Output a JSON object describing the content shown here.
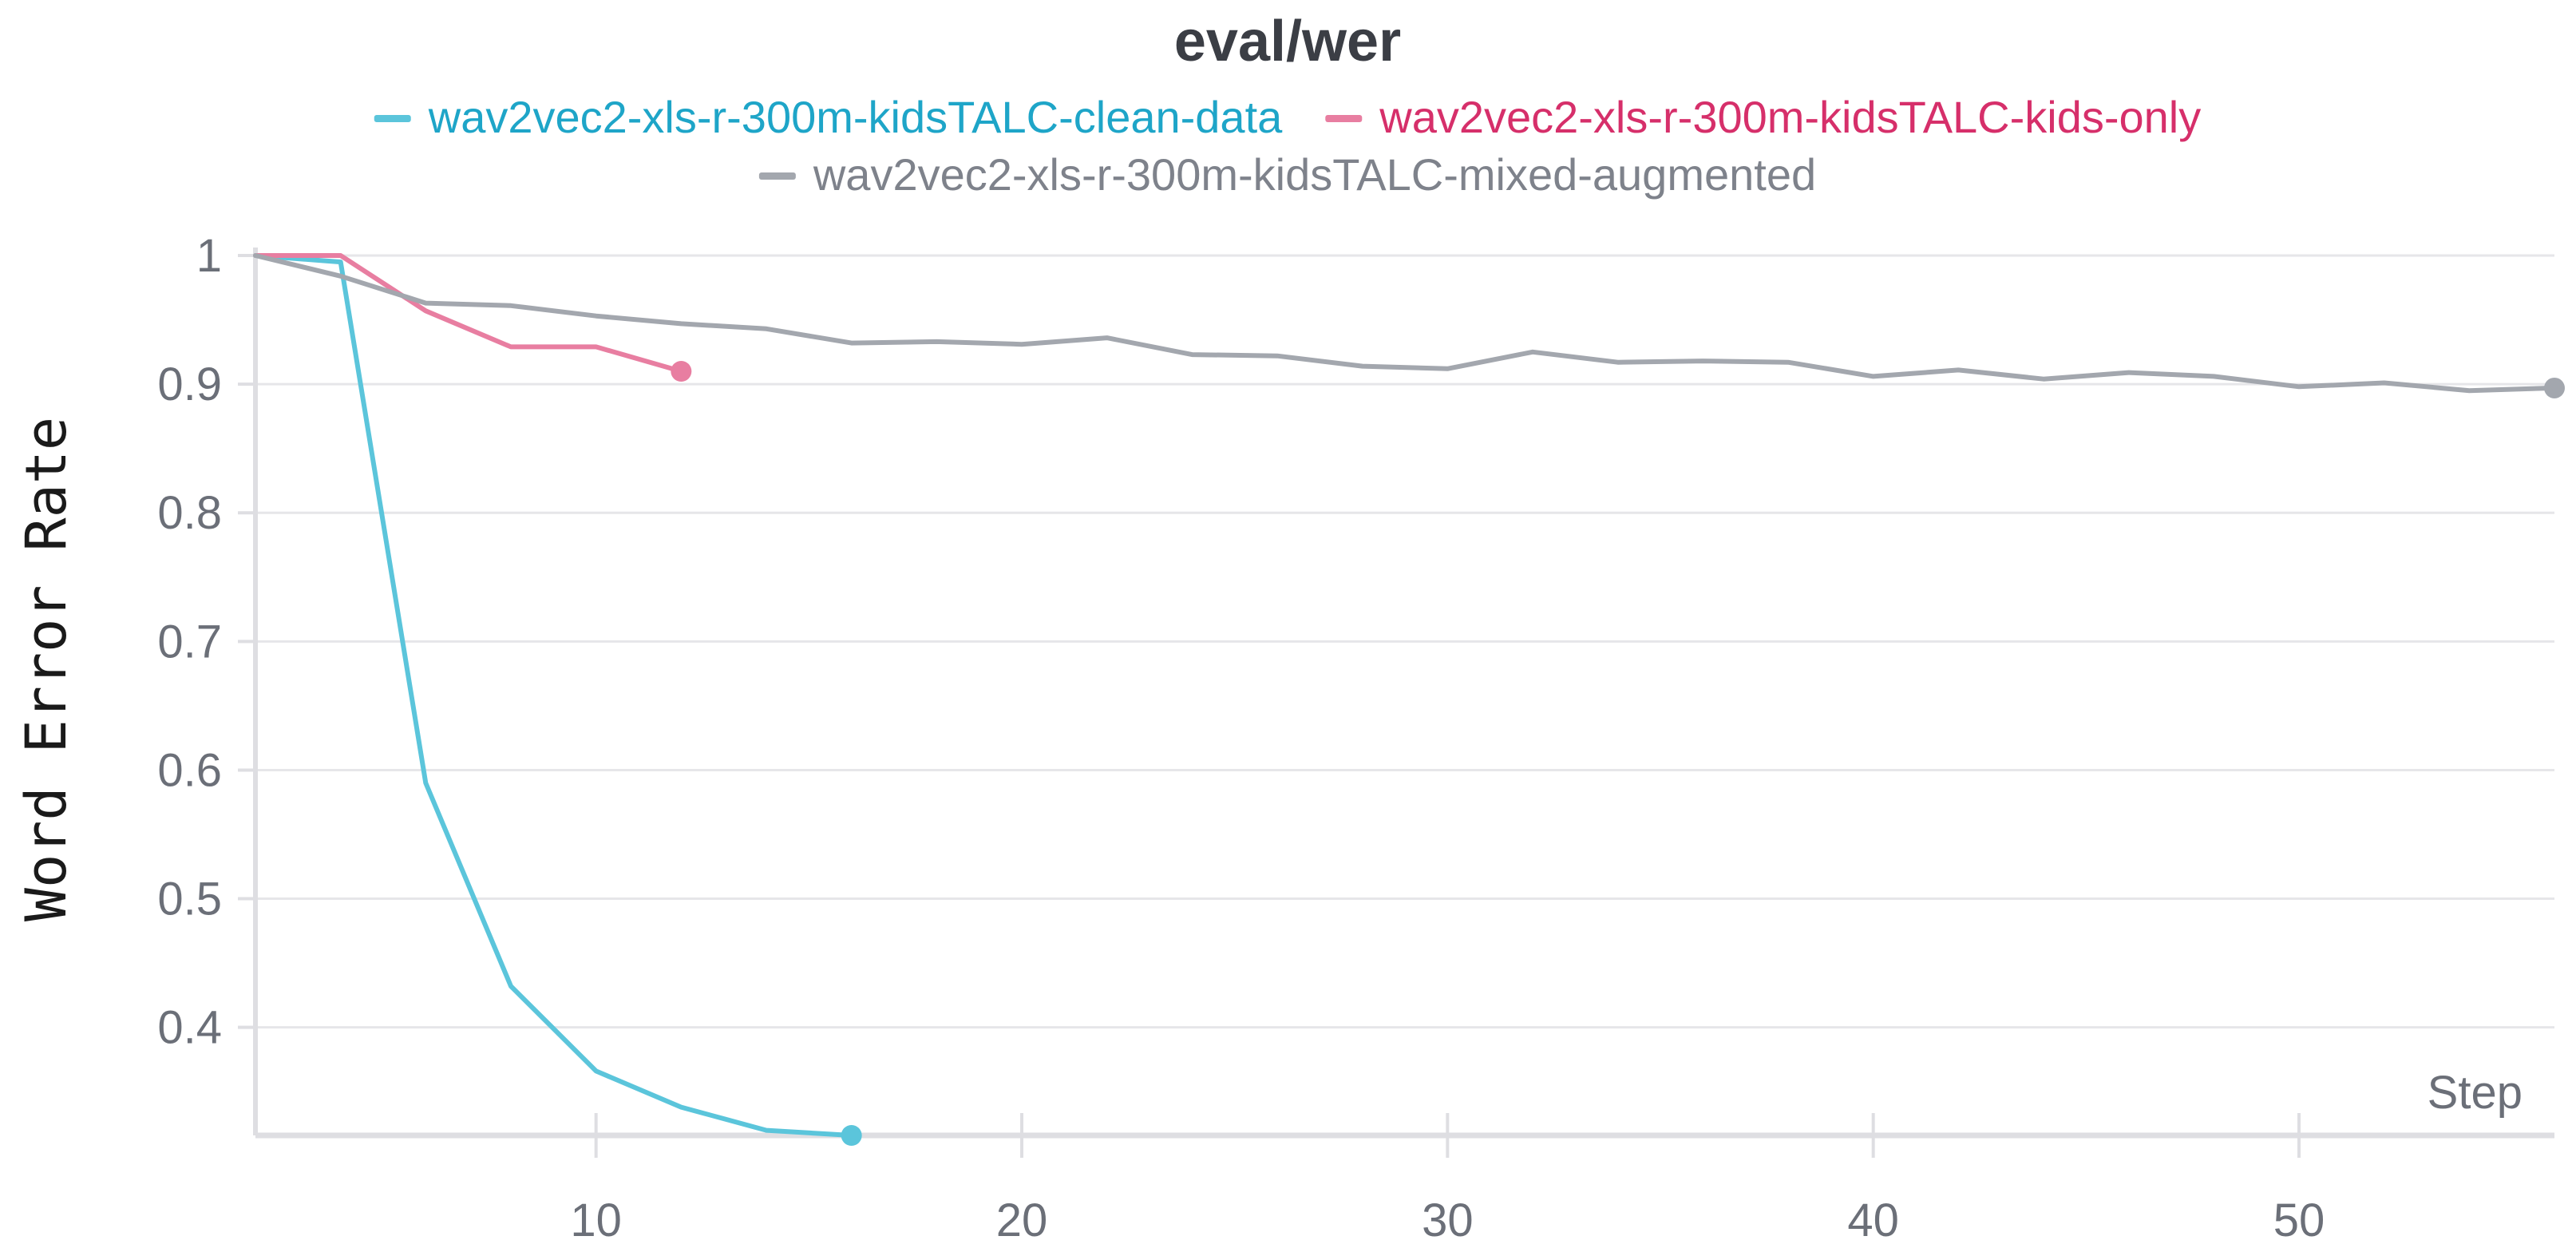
{
  "chart_data": {
    "type": "line",
    "title": "eval/wer",
    "xlabel": "Step",
    "ylabel": "Word Error Rate",
    "xlim": [
      2,
      56
    ],
    "ylim": [
      0.316,
      1
    ],
    "x_ticks": [
      10,
      20,
      30,
      40,
      50
    ],
    "y_ticks": [
      0.4,
      0.5,
      0.6,
      0.7,
      0.8,
      0.9,
      1
    ],
    "y_tick_labels": [
      "0.4",
      "0.5",
      "0.6",
      "0.7",
      "0.8",
      "0.9",
      "1"
    ],
    "grid": true,
    "legend_position": "top-center",
    "series": [
      {
        "name": "wav2vec2-xls-r-300m-kidsTALC-clean-data",
        "color": "#5bc5db",
        "legend_text_color": "#1ea5c8",
        "x": [
          2,
          4,
          6,
          8,
          10,
          12,
          14,
          16
        ],
        "y": [
          1.0,
          0.995,
          0.59,
          0.432,
          0.366,
          0.338,
          0.32,
          0.316
        ]
      },
      {
        "name": "wav2vec2-xls-r-300m-kidsTALC-kids-only",
        "color": "#e87ea1",
        "legend_text_color": "#d62f6a",
        "x": [
          2,
          4,
          6,
          8,
          10,
          12
        ],
        "y": [
          1.0,
          1.0,
          0.957,
          0.929,
          0.929,
          0.91
        ]
      },
      {
        "name": "wav2vec2-xls-r-300m-kidsTALC-mixed-augmented",
        "color": "#a3a7ae",
        "legend_text_color": "#7e828b",
        "x": [
          2,
          4,
          6,
          8,
          10,
          12,
          14,
          16,
          18,
          20,
          22,
          24,
          26,
          28,
          30,
          32,
          34,
          36,
          38,
          40,
          42,
          44,
          46,
          48,
          50,
          52,
          54,
          56
        ],
        "y": [
          1.0,
          0.984,
          0.963,
          0.961,
          0.953,
          0.947,
          0.943,
          0.932,
          0.933,
          0.931,
          0.936,
          0.923,
          0.922,
          0.914,
          0.912,
          0.925,
          0.917,
          0.918,
          0.917,
          0.906,
          0.911,
          0.904,
          0.909,
          0.906,
          0.898,
          0.901,
          0.895,
          0.897
        ]
      }
    ]
  }
}
